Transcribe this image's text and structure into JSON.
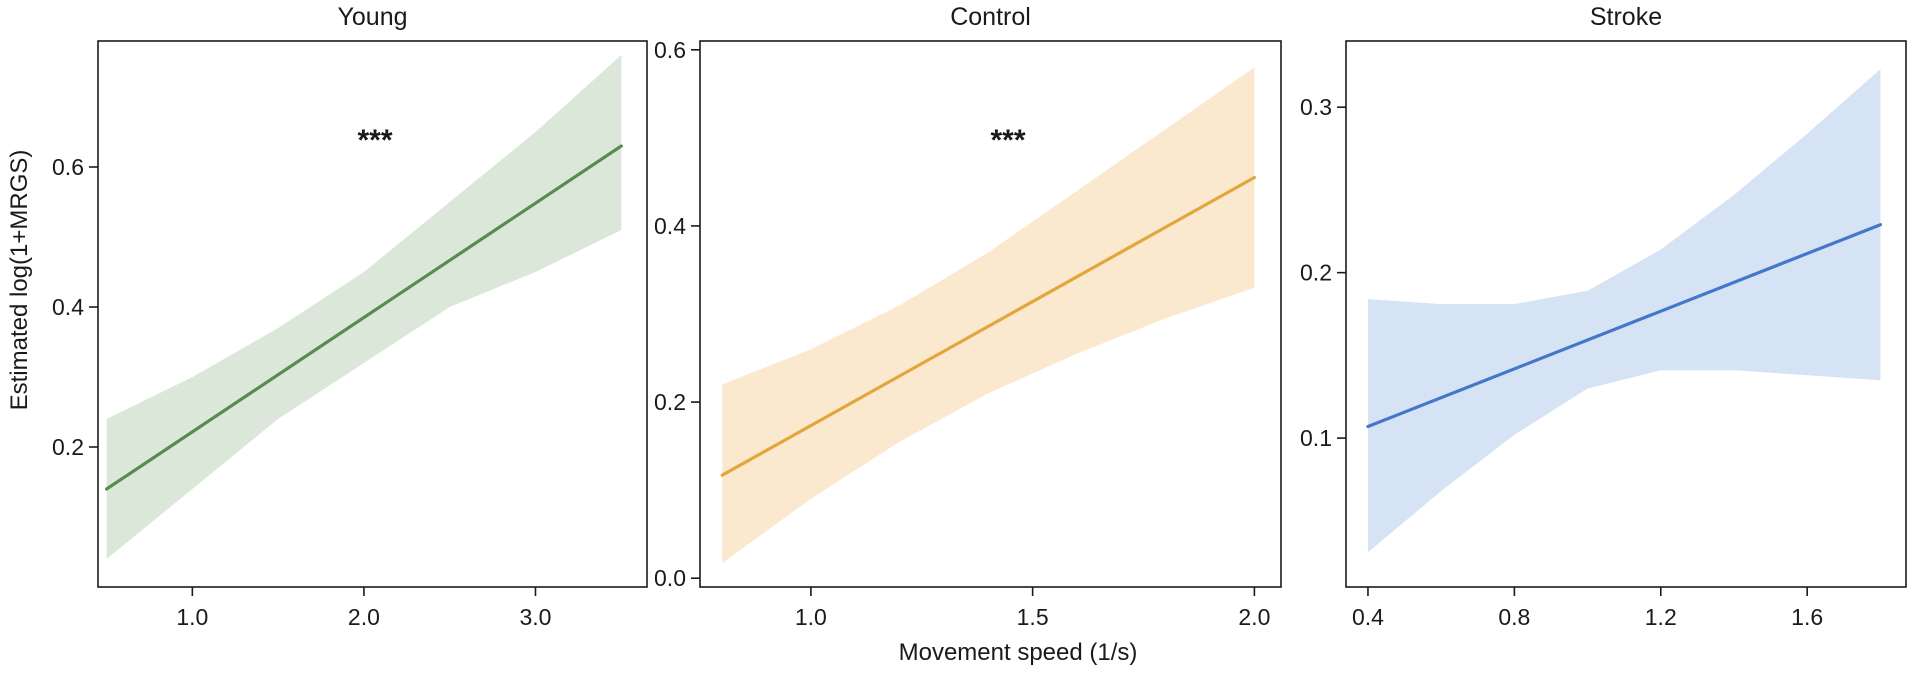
{
  "figure": {
    "shared_xlabel": "Movement speed (1/s)",
    "shared_ylabel": "Estimated log(1+MRGS)"
  },
  "chart_data": [
    {
      "type": "line",
      "title": "Young",
      "annotation": "***",
      "color": "#5a8a54",
      "band_color": "#dbe8d9",
      "xlim": [
        0.45,
        3.65
      ],
      "ylim": [
        0.0,
        0.78
      ],
      "xticks": [
        1.0,
        2.0,
        3.0
      ],
      "xtick_labels": [
        "1.0",
        "2.0",
        "3.0"
      ],
      "yticks": [
        0.2,
        0.4,
        0.6
      ],
      "ytick_labels": [
        "0.2",
        "0.4",
        "0.6"
      ],
      "series": [
        {
          "x": [
            0.5,
            3.5
          ],
          "y": [
            0.14,
            0.63
          ]
        }
      ],
      "band": {
        "x": [
          0.5,
          1.0,
          1.5,
          2.0,
          2.5,
          3.0,
          3.5
        ],
        "upper": [
          0.24,
          0.3,
          0.37,
          0.45,
          0.55,
          0.65,
          0.76
        ],
        "lower": [
          0.04,
          0.14,
          0.24,
          0.32,
          0.4,
          0.45,
          0.51
        ]
      }
    },
    {
      "type": "line",
      "title": "Control",
      "annotation": "***",
      "color": "#e3a63a",
      "band_color": "#fbe9cf",
      "xlim": [
        0.75,
        2.06
      ],
      "ylim": [
        -0.01,
        0.61
      ],
      "xticks": [
        1.0,
        1.5,
        2.0
      ],
      "xtick_labels": [
        "1.0",
        "1.5",
        "2.0"
      ],
      "yticks": [
        0.0,
        0.2,
        0.4,
        0.6
      ],
      "ytick_labels": [
        "0.0",
        "0.2",
        "0.4",
        "0.6"
      ],
      "series": [
        {
          "x": [
            0.8,
            2.0
          ],
          "y": [
            0.117,
            0.455
          ]
        }
      ],
      "band": {
        "x": [
          0.8,
          1.0,
          1.2,
          1.4,
          1.6,
          1.8,
          2.0
        ],
        "upper": [
          0.22,
          0.26,
          0.31,
          0.37,
          0.44,
          0.51,
          0.58
        ],
        "lower": [
          0.017,
          0.09,
          0.155,
          0.21,
          0.255,
          0.295,
          0.33
        ]
      }
    },
    {
      "type": "line",
      "title": "Stroke",
      "annotation": "",
      "color": "#4477c9",
      "band_color": "#d6e3f4",
      "xlim": [
        0.34,
        1.87
      ],
      "ylim": [
        0.01,
        0.34
      ],
      "xticks": [
        0.4,
        0.8,
        1.2,
        1.6
      ],
      "xtick_labels": [
        "0.4",
        "0.8",
        "1.2",
        "1.6"
      ],
      "yticks": [
        0.1,
        0.2,
        0.3
      ],
      "ytick_labels": [
        "0.1",
        "0.2",
        "0.3"
      ],
      "series": [
        {
          "x": [
            0.4,
            1.8
          ],
          "y": [
            0.107,
            0.229
          ]
        }
      ],
      "band": {
        "x": [
          0.4,
          0.6,
          0.8,
          1.0,
          1.2,
          1.4,
          1.6,
          1.8
        ],
        "upper": [
          0.184,
          0.181,
          0.181,
          0.189,
          0.214,
          0.247,
          0.284,
          0.323
        ],
        "lower": [
          0.031,
          0.068,
          0.102,
          0.13,
          0.141,
          0.141,
          0.138,
          0.135
        ]
      }
    }
  ]
}
